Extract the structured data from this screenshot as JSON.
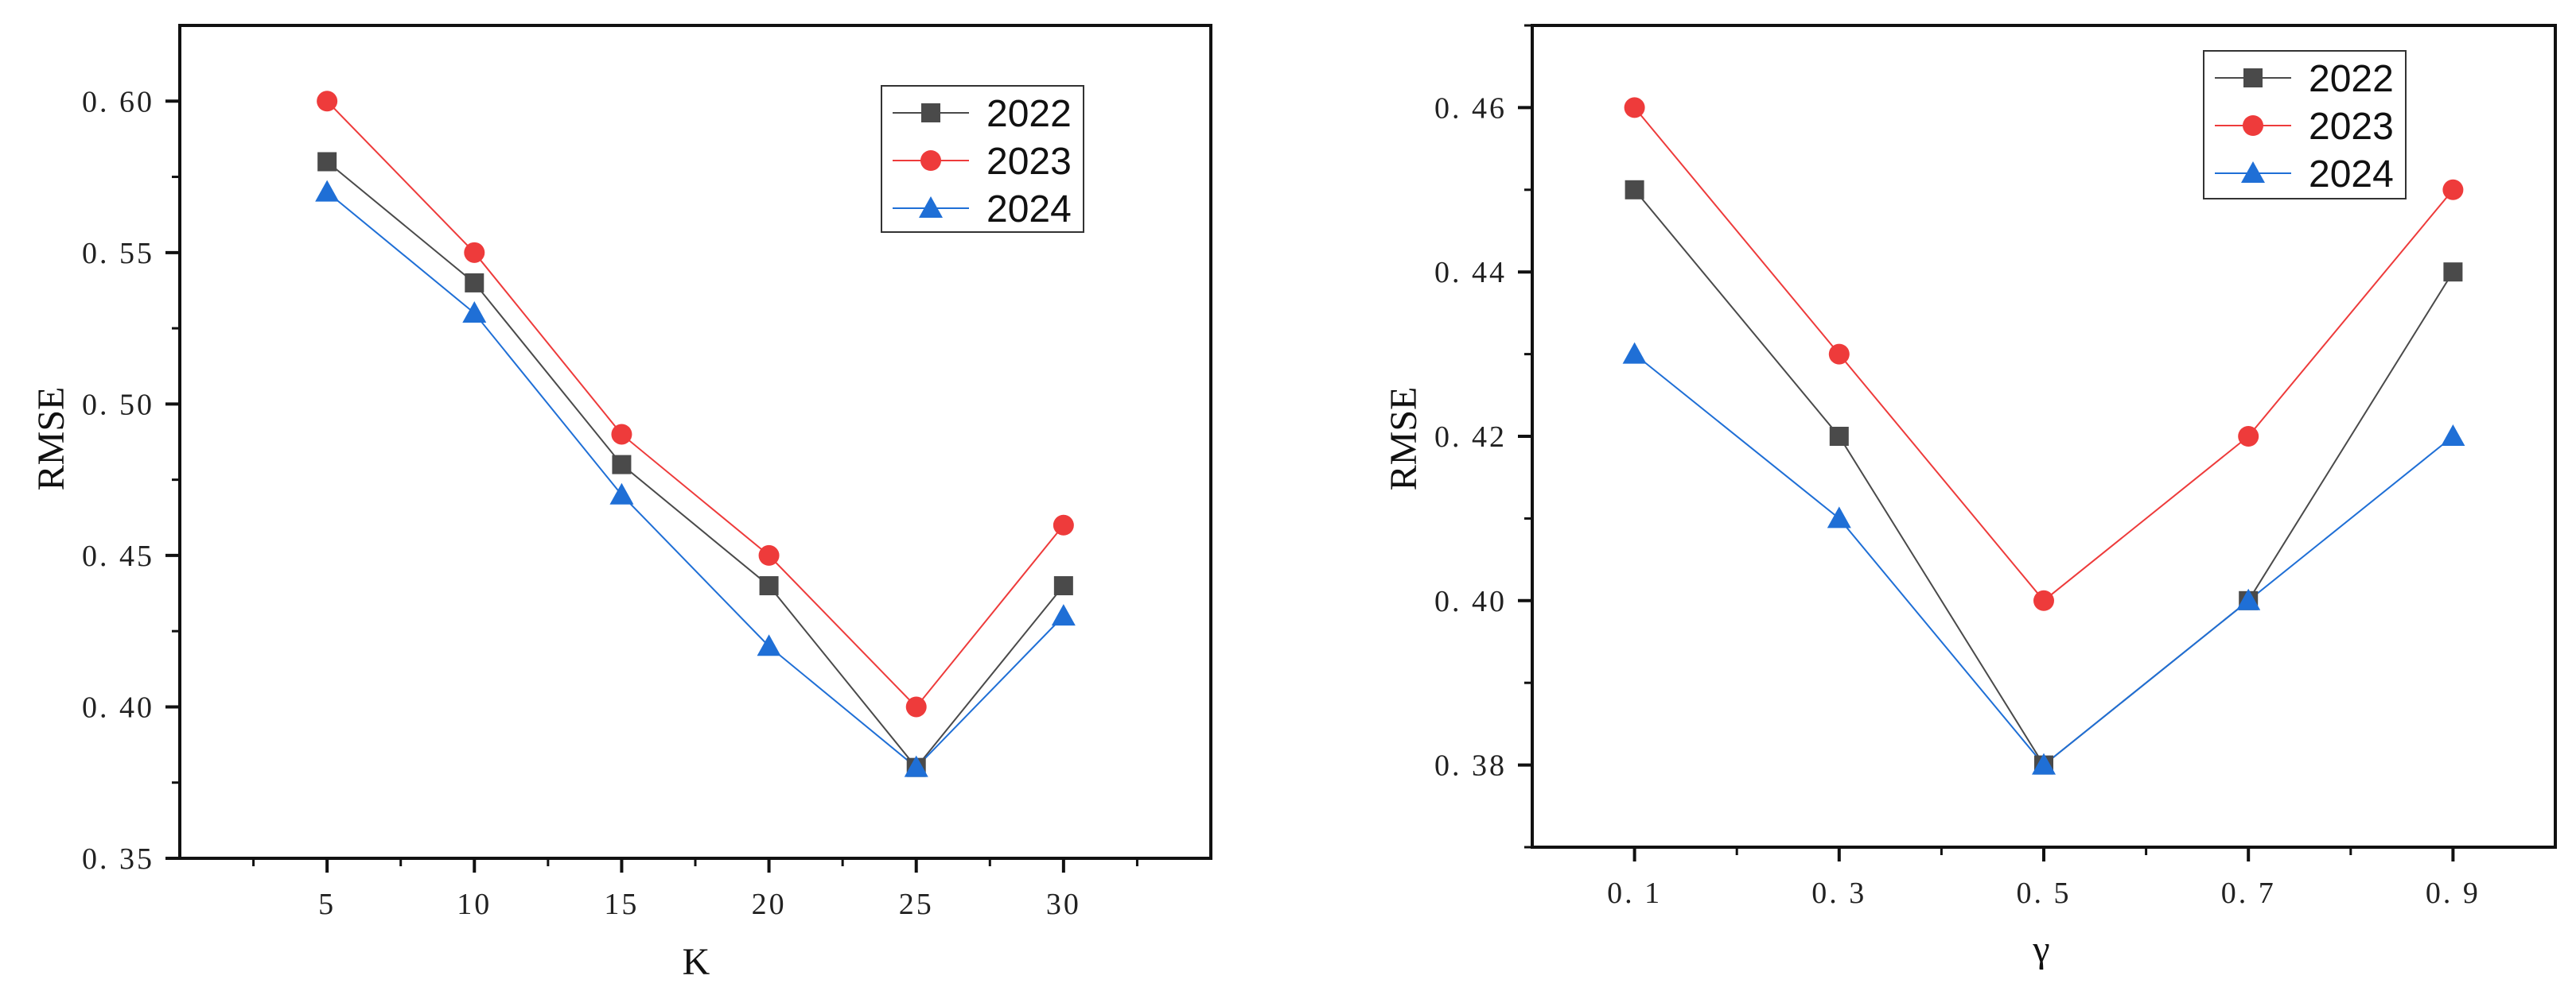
{
  "chart_data": [
    {
      "type": "line",
      "xlabel": "K",
      "ylabel": "RMSE",
      "x": [
        5,
        10,
        15,
        20,
        25,
        30
      ],
      "xticks": [
        "5",
        "10",
        "15",
        "20",
        "25",
        "30"
      ],
      "xlim": [
        0,
        35
      ],
      "ylim": [
        0.35,
        0.625
      ],
      "yticks": [
        "0. 35",
        "0. 40",
        "0. 45",
        "0. 50",
        "0. 55",
        "0. 60"
      ],
      "yticks_values": [
        0.35,
        0.4,
        0.45,
        0.5,
        0.55,
        0.6
      ],
      "legend_position": "top-right",
      "series": [
        {
          "name": "2022",
          "color": "#4a4a4a",
          "marker": "square",
          "values": [
            0.58,
            0.54,
            0.48,
            0.44,
            0.38,
            0.44
          ]
        },
        {
          "name": "2023",
          "color": "#ee3b3b",
          "marker": "circle",
          "values": [
            0.6,
            0.55,
            0.49,
            0.45,
            0.4,
            0.46
          ]
        },
        {
          "name": "2024",
          "color": "#1f6fd6",
          "marker": "triangle",
          "values": [
            0.57,
            0.53,
            0.47,
            0.42,
            0.38,
            0.43
          ]
        }
      ]
    },
    {
      "type": "line",
      "xlabel": "γ",
      "ylabel": "RMSE",
      "x": [
        0.1,
        0.3,
        0.5,
        0.7,
        0.9
      ],
      "xticks": [
        "0. 1",
        "0. 3",
        "0. 5",
        "0. 7",
        "0. 9"
      ],
      "xlim": [
        0.0,
        1.0
      ],
      "ylim": [
        0.37,
        0.47
      ],
      "yticks": [
        "0. 38",
        "0. 40",
        "0. 42",
        "0. 44",
        "0. 46"
      ],
      "yticks_values": [
        0.38,
        0.4,
        0.42,
        0.44,
        0.46
      ],
      "legend_position": "top-right",
      "series": [
        {
          "name": "2022",
          "color": "#4a4a4a",
          "marker": "square",
          "values": [
            0.45,
            0.42,
            0.38,
            0.4,
            0.44
          ]
        },
        {
          "name": "2023",
          "color": "#ee3b3b",
          "marker": "circle",
          "values": [
            0.46,
            0.43,
            0.4,
            0.42,
            0.45
          ]
        },
        {
          "name": "2024",
          "color": "#1f6fd6",
          "marker": "triangle",
          "values": [
            0.43,
            0.41,
            0.38,
            0.4,
            0.42
          ]
        }
      ]
    }
  ]
}
